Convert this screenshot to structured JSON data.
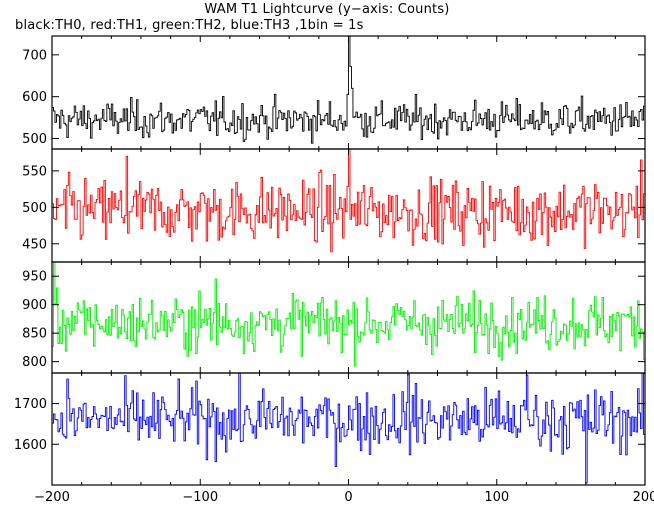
{
  "chart_data": {
    "type": "line",
    "title": "WAM T1 Lightcurve (y−axis: Counts)",
    "subtitle": "black:TH0, red:TH1, green:TH2, blue:TH3 ,1bin = 1s",
    "x_range": [
      -200,
      200
    ],
    "x_ticks": [
      -200,
      -100,
      0,
      100,
      200
    ],
    "x_tick_labels": [
      "−200",
      "−100",
      "0",
      "100",
      "200"
    ],
    "grid": false,
    "panels": [
      {
        "series": "TH0",
        "color": "#000000",
        "y_range": [
          475,
          745
        ],
        "y_ticks": [
          500,
          600,
          700
        ],
        "y_tick_labels": [
          "500",
          "600",
          "700"
        ],
        "baseline": 545,
        "noise_sd": 22,
        "features": [
          {
            "x": 0,
            "y": 745
          },
          {
            "x": 1,
            "y": 672
          },
          {
            "x": -1,
            "y": 605
          },
          {
            "x": 2,
            "y": 620
          }
        ]
      },
      {
        "series": "TH1",
        "color": "#ff0000",
        "y_range": [
          425,
          580
        ],
        "y_ticks": [
          450,
          500,
          550
        ],
        "y_tick_labels": [
          "450",
          "500",
          "550"
        ],
        "baseline": 495,
        "noise_sd": 22,
        "features": [
          {
            "x": 0,
            "y": 582
          },
          {
            "x": -150,
            "y": 570
          },
          {
            "x": 197,
            "y": 565
          }
        ]
      },
      {
        "series": "TH2",
        "color": "#00ee00",
        "y_range": [
          780,
          975
        ],
        "y_ticks": [
          800,
          850,
          900,
          950
        ],
        "y_tick_labels": [
          "800",
          "850",
          "900",
          "950"
        ],
        "baseline": 868,
        "noise_sd": 24,
        "features": [
          {
            "x": -199,
            "y": 975
          },
          {
            "x": -90,
            "y": 945
          }
        ]
      },
      {
        "series": "TH3",
        "color": "#0000ff",
        "y_range": [
          1500,
          1775
        ],
        "y_ticks": [
          1600,
          1700
        ],
        "y_tick_labels": [
          "1600",
          "1700"
        ],
        "baseline": 1660,
        "noise_sd": 38,
        "features": [
          {
            "x": 40,
            "y": 1772
          },
          {
            "x": 120,
            "y": 1770
          },
          {
            "x": 160,
            "y": 1505
          },
          {
            "x": -190,
            "y": 1760
          }
        ]
      }
    ]
  }
}
